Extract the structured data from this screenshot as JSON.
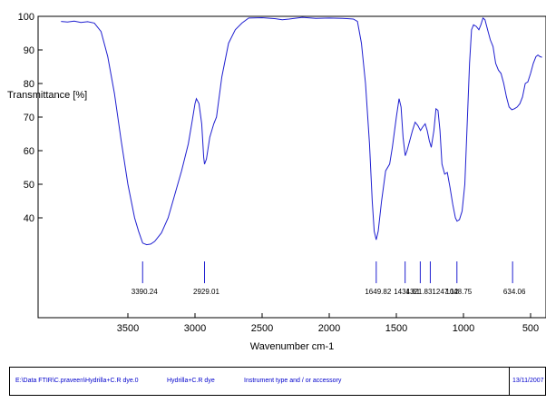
{
  "chart_data": {
    "type": "line",
    "title": "",
    "xlabel": "Wavenumber cm-1",
    "ylabel": "Transmittance [%]",
    "xlim": [
      4000,
      400
    ],
    "ylim": [
      0,
      100
    ],
    "x_ticks": [
      3500,
      3000,
      2500,
      2000,
      1500,
      1000,
      500
    ],
    "y_ticks": [
      40,
      50,
      60,
      70,
      80,
      90,
      100
    ],
    "grid": false,
    "line_color": "#1f1fd0",
    "series": [
      {
        "points": [
          [
            3998,
            98.5
          ],
          [
            3950,
            98.3
          ],
          [
            3900,
            98.6
          ],
          [
            3850,
            98.2
          ],
          [
            3800,
            98.4
          ],
          [
            3750,
            98.0
          ],
          [
            3700,
            95.5
          ],
          [
            3650,
            88.0
          ],
          [
            3600,
            77.0
          ],
          [
            3550,
            63.0
          ],
          [
            3500,
            50.0
          ],
          [
            3450,
            40.0
          ],
          [
            3420,
            36.0
          ],
          [
            3390,
            32.5
          ],
          [
            3360,
            32.0
          ],
          [
            3330,
            32.2
          ],
          [
            3300,
            33.0
          ],
          [
            3250,
            35.5
          ],
          [
            3200,
            40.0
          ],
          [
            3150,
            47.0
          ],
          [
            3100,
            54.0
          ],
          [
            3050,
            62.0
          ],
          [
            3020,
            69.0
          ],
          [
            3000,
            74.0
          ],
          [
            2990,
            75.5
          ],
          [
            2970,
            74.0
          ],
          [
            2950,
            68.0
          ],
          [
            2935,
            58.0
          ],
          [
            2929,
            56.0
          ],
          [
            2915,
            57.5
          ],
          [
            2890,
            64.0
          ],
          [
            2860,
            68.0
          ],
          [
            2840,
            70.0
          ],
          [
            2800,
            82.0
          ],
          [
            2750,
            92.0
          ],
          [
            2700,
            96.0
          ],
          [
            2650,
            98.0
          ],
          [
            2600,
            99.5
          ],
          [
            2500,
            99.6
          ],
          [
            2400,
            99.3
          ],
          [
            2350,
            99.0
          ],
          [
            2300,
            99.2
          ],
          [
            2200,
            99.7
          ],
          [
            2100,
            99.4
          ],
          [
            2000,
            99.5
          ],
          [
            1900,
            99.4
          ],
          [
            1820,
            99.2
          ],
          [
            1790,
            98.5
          ],
          [
            1760,
            92.0
          ],
          [
            1730,
            80.0
          ],
          [
            1700,
            62.0
          ],
          [
            1680,
            45.0
          ],
          [
            1665,
            36.0
          ],
          [
            1650,
            33.5
          ],
          [
            1635,
            36.0
          ],
          [
            1610,
            45.0
          ],
          [
            1580,
            54.0
          ],
          [
            1550,
            56.0
          ],
          [
            1530,
            61.0
          ],
          [
            1500,
            70.0
          ],
          [
            1480,
            75.5
          ],
          [
            1465,
            73.0
          ],
          [
            1450,
            64.0
          ],
          [
            1434,
            58.5
          ],
          [
            1420,
            60.0
          ],
          [
            1400,
            63.0
          ],
          [
            1380,
            66.0
          ],
          [
            1360,
            68.5
          ],
          [
            1340,
            67.5
          ],
          [
            1320,
            66.0
          ],
          [
            1305,
            67.0
          ],
          [
            1285,
            68.0
          ],
          [
            1270,
            66.0
          ],
          [
            1255,
            63.0
          ],
          [
            1240,
            61.0
          ],
          [
            1220,
            66.0
          ],
          [
            1205,
            72.5
          ],
          [
            1190,
            72.0
          ],
          [
            1175,
            66.0
          ],
          [
            1160,
            56.0
          ],
          [
            1140,
            53.0
          ],
          [
            1120,
            53.5
          ],
          [
            1100,
            49.0
          ],
          [
            1080,
            44.0
          ],
          [
            1060,
            40.0
          ],
          [
            1048,
            39.0
          ],
          [
            1030,
            39.5
          ],
          [
            1010,
            42.0
          ],
          [
            990,
            50.0
          ],
          [
            970,
            70.0
          ],
          [
            955,
            86.0
          ],
          [
            940,
            96.0
          ],
          [
            925,
            97.5
          ],
          [
            905,
            97.0
          ],
          [
            885,
            96.0
          ],
          [
            870,
            97.5
          ],
          [
            855,
            99.5
          ],
          [
            840,
            99.0
          ],
          [
            820,
            96.0
          ],
          [
            800,
            93.0
          ],
          [
            780,
            91.0
          ],
          [
            760,
            86.0
          ],
          [
            740,
            84.0
          ],
          [
            720,
            83.0
          ],
          [
            700,
            80.0
          ],
          [
            680,
            76.0
          ],
          [
            660,
            73.0
          ],
          [
            640,
            72.2
          ],
          [
            620,
            72.5
          ],
          [
            600,
            73.0
          ],
          [
            580,
            74.0
          ],
          [
            560,
            76.0
          ],
          [
            540,
            80.0
          ],
          [
            520,
            80.5
          ],
          [
            500,
            83.0
          ],
          [
            480,
            86.0
          ],
          [
            460,
            88.0
          ],
          [
            445,
            88.5
          ],
          [
            430,
            88.0
          ],
          [
            415,
            87.8
          ]
        ]
      }
    ],
    "peak_markers": [
      {
        "x": 3390.24,
        "label": "3390.24"
      },
      {
        "x": 2929.01,
        "label": "2929.01"
      },
      {
        "x": 1649.82,
        "label": "1649.82"
      },
      {
        "x": 1434.61,
        "label": "1434.61"
      },
      {
        "x": 1321.83,
        "label": ""
      },
      {
        "x": 1247.12,
        "label": "1321.831247.12"
      },
      {
        "x": 1048.75,
        "label": "1048.75"
      },
      {
        "x": 634.06,
        "label": "634.06"
      }
    ]
  },
  "footer": {
    "file_path": "E:\\Data FTIR\\C.praveen\\Hydrilla+C.R dye.0",
    "sample": "Hydrilla+C.R dye",
    "instrument": "Instrument type and / or accessory",
    "date": "13/11/2007"
  }
}
